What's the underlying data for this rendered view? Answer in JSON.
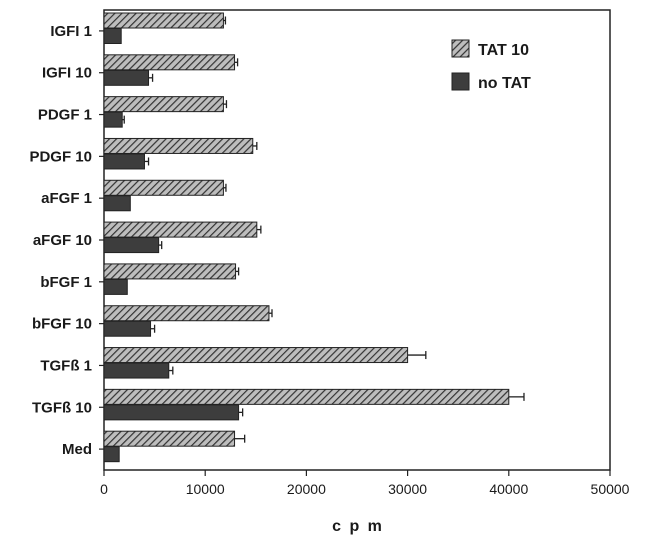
{
  "chart_data": {
    "type": "bar",
    "orientation": "horizontal",
    "categories": [
      "IGFI 1",
      "IGFI 10",
      "PDGF 1",
      "PDGF 10",
      "aFGF 1",
      "aFGF 10",
      "bFGF 1",
      "bFGF 10",
      "TGFß 1",
      "TGFß 10",
      "Med"
    ],
    "series": [
      {
        "name": "TAT 10",
        "values": [
          11800,
          12900,
          11800,
          14700,
          11800,
          15100,
          13000,
          16300,
          30000,
          40000,
          12900
        ],
        "errors": [
          200,
          300,
          300,
          400,
          250,
          400,
          300,
          300,
          1800,
          1500,
          1000
        ],
        "fill": "hatched",
        "color": "#4a4a4a"
      },
      {
        "name": "no TAT",
        "values": [
          1700,
          4400,
          1800,
          4000,
          2600,
          5400,
          2300,
          4600,
          6400,
          13300,
          1500
        ],
        "errors": [
          0,
          400,
          200,
          400,
          0,
          300,
          0,
          400,
          400,
          400,
          0
        ],
        "fill": "solid",
        "color": "#3d3d3d"
      }
    ],
    "xlabel": "c p m",
    "xlim": [
      0,
      50000
    ],
    "xticks": [
      "0",
      "10000",
      "20000",
      "30000",
      "40000",
      "50000"
    ],
    "legend_position": "top-right",
    "grid": false
  }
}
